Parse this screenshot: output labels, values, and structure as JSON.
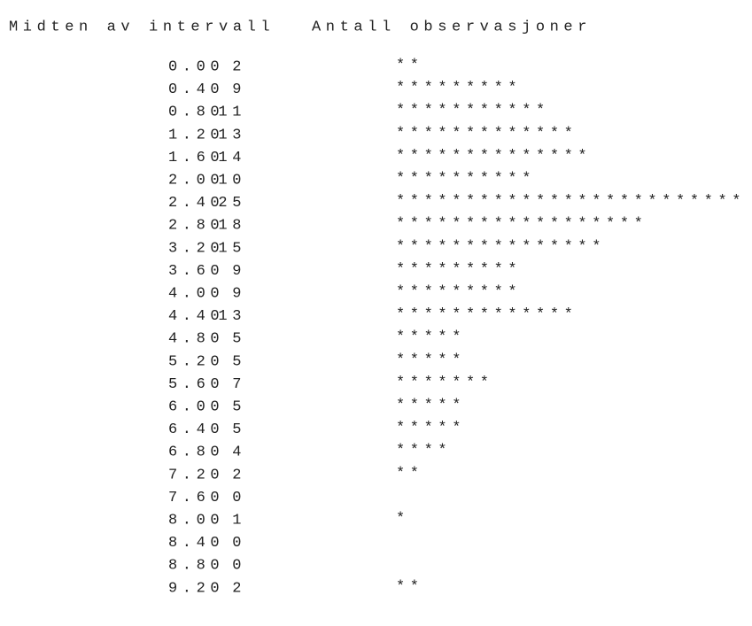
{
  "header": {
    "midpoint": "Midten av intervall",
    "count": "Antall observasjoner"
  },
  "bar_symbol": "*",
  "rows": [
    {
      "midpoint": "0.00",
      "count": 2
    },
    {
      "midpoint": "0.40",
      "count": 9
    },
    {
      "midpoint": "0.80",
      "count": 11
    },
    {
      "midpoint": "1.20",
      "count": 13
    },
    {
      "midpoint": "1.60",
      "count": 14
    },
    {
      "midpoint": "2.00",
      "count": 10
    },
    {
      "midpoint": "2.40",
      "count": 25
    },
    {
      "midpoint": "2.80",
      "count": 18
    },
    {
      "midpoint": "3.20",
      "count": 15
    },
    {
      "midpoint": "3.60",
      "count": 9
    },
    {
      "midpoint": "4.00",
      "count": 9
    },
    {
      "midpoint": "4.40",
      "count": 13
    },
    {
      "midpoint": "4.80",
      "count": 5
    },
    {
      "midpoint": "5.20",
      "count": 5
    },
    {
      "midpoint": "5.60",
      "count": 7
    },
    {
      "midpoint": "6.00",
      "count": 5
    },
    {
      "midpoint": "6.40",
      "count": 5
    },
    {
      "midpoint": "6.80",
      "count": 4
    },
    {
      "midpoint": "7.20",
      "count": 2
    },
    {
      "midpoint": "7.60",
      "count": 0
    },
    {
      "midpoint": "8.00",
      "count": 1
    },
    {
      "midpoint": "8.40",
      "count": 0
    },
    {
      "midpoint": "8.80",
      "count": 0
    },
    {
      "midpoint": "9.20",
      "count": 2
    }
  ]
}
